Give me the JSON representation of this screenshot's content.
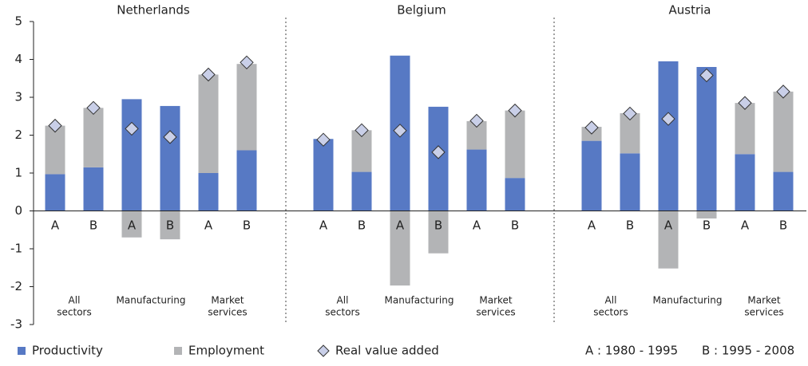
{
  "chart_data": {
    "type": "bar",
    "panels": [
      "Netherlands",
      "Belgium",
      "Austria"
    ],
    "categories": [
      "A",
      "B",
      "A",
      "B",
      "A",
      "B",
      "A",
      "B",
      "A",
      "B",
      "A",
      "B",
      "A",
      "B",
      "A",
      "B",
      "A",
      "B"
    ],
    "group_labels": [
      [
        "All",
        "sectors"
      ],
      [
        "Manufacturing"
      ],
      [
        "Market",
        "services"
      ],
      [
        "All",
        "sectors"
      ],
      [
        "Manufacturing"
      ],
      [
        "Market",
        "services"
      ],
      [
        "All",
        "sectors"
      ],
      [
        "Manufacturing"
      ],
      [
        "Market",
        "services"
      ]
    ],
    "series": [
      {
        "name": "Productivity",
        "color": "#5779c4",
        "kind": "stack",
        "values": [
          0.97,
          1.15,
          2.95,
          2.77,
          1.0,
          1.6,
          1.9,
          1.03,
          4.1,
          2.75,
          1.62,
          0.87,
          1.85,
          1.52,
          3.95,
          3.8,
          1.5,
          1.03
        ]
      },
      {
        "name": "Employment",
        "color": "#b3b4b6",
        "kind": "stack",
        "values": [
          1.28,
          1.57,
          -0.7,
          -0.75,
          2.6,
          2.28,
          0,
          1.1,
          -1.97,
          -1.12,
          0.75,
          1.78,
          0.37,
          1.06,
          -1.52,
          -0.2,
          1.35,
          2.12
        ]
      },
      {
        "name": "Real value added",
        "color": "#c9cfe8",
        "kind": "diamond",
        "values": [
          2.25,
          2.72,
          2.17,
          1.95,
          3.6,
          3.92,
          1.88,
          2.13,
          2.12,
          1.55,
          2.38,
          2.65,
          2.2,
          2.57,
          2.43,
          3.58,
          2.85,
          3.15
        ]
      }
    ],
    "period_notes": [
      "A : 1980 - 1995",
      "B : 1995 - 2008"
    ],
    "ylim": [
      -3,
      5
    ],
    "yticks": [
      -3,
      -2,
      -1,
      0,
      1,
      2,
      3,
      4,
      5
    ]
  }
}
